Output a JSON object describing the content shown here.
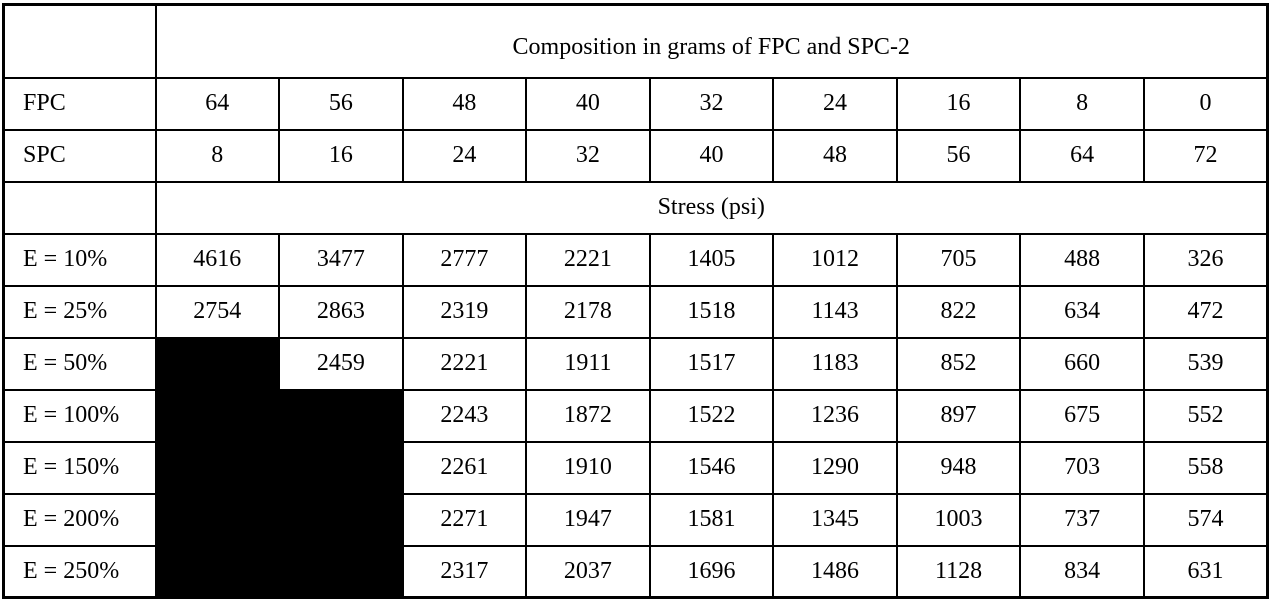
{
  "colors": {
    "ink": "#000000",
    "paper": "#ffffff",
    "redaction": "#000000"
  },
  "table": {
    "composition_header": "Composition in grams of FPC and SPC-2",
    "stress_header": "Stress (psi)",
    "ingredient_rows": [
      {
        "label": "FPC",
        "values": [
          "64",
          "56",
          "48",
          "40",
          "32",
          "24",
          "16",
          "8",
          "0"
        ]
      },
      {
        "label": "SPC",
        "values": [
          "8",
          "16",
          "24",
          "32",
          "40",
          "48",
          "56",
          "64",
          "72"
        ]
      }
    ],
    "stress_rows": [
      {
        "label": "E = 10%",
        "values": [
          "4616",
          "3477",
          "2777",
          "2221",
          "1405",
          "1012",
          "705",
          "488",
          "326"
        ]
      },
      {
        "label": "E = 25%",
        "values": [
          "2754",
          "2863",
          "2319",
          "2178",
          "1518",
          "1143",
          "822",
          "634",
          "472"
        ]
      },
      {
        "label": "E = 50%",
        "values": [
          null,
          "2459",
          "2221",
          "1911",
          "1517",
          "1183",
          "852",
          "660",
          "539"
        ]
      },
      {
        "label": "E = 100%",
        "values": [
          null,
          null,
          "2243",
          "1872",
          "1522",
          "1236",
          "897",
          "675",
          "552"
        ]
      },
      {
        "label": "E = 150%",
        "values": [
          null,
          null,
          "2261",
          "1910",
          "1546",
          "1290",
          "948",
          "703",
          "558"
        ]
      },
      {
        "label": "E = 200%",
        "values": [
          null,
          null,
          "2271",
          "1947",
          "1581",
          "1345",
          "1003",
          "737",
          "574"
        ]
      },
      {
        "label": "E = 250%",
        "values": [
          null,
          null,
          "2317",
          "2037",
          "1696",
          "1486",
          "1128",
          "834",
          "631"
        ]
      }
    ]
  }
}
